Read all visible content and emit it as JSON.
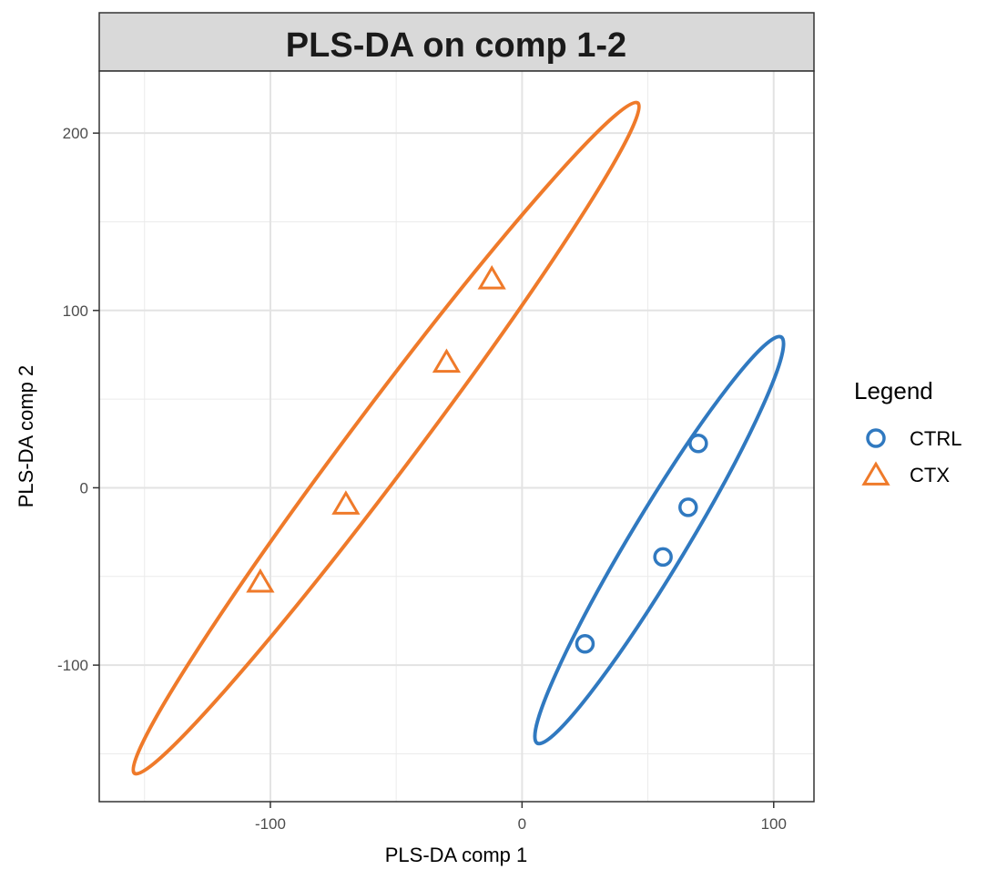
{
  "chart_data": {
    "type": "scatter",
    "title": "PLS-DA on comp 1-2",
    "xlabel": "PLS-DA comp 1",
    "ylabel": "PLS-DA comp 2",
    "xlim": [
      -168,
      116
    ],
    "ylim": [
      -177,
      235
    ],
    "x_ticks": [
      -100,
      0,
      100
    ],
    "x_tick_labels": [
      "-100",
      "0",
      "100"
    ],
    "y_ticks": [
      -100,
      0,
      100,
      200
    ],
    "y_tick_labels": [
      "-100",
      "0",
      "100",
      "200"
    ],
    "grid": true,
    "legend": {
      "title": "Legend",
      "position": "right"
    },
    "series": [
      {
        "name": "CTRL",
        "marker": "circle",
        "color": "#3079c0",
        "points": [
          [
            25,
            -88
          ],
          [
            56,
            -39
          ],
          [
            66,
            -11
          ],
          [
            70,
            25
          ]
        ],
        "ellipse": [
          [
            6,
            -144
          ],
          [
            103,
            85
          ]
        ]
      },
      {
        "name": "CTX",
        "marker": "triangle",
        "color": "#ef7a2a",
        "points": [
          [
            -104,
            -54
          ],
          [
            -70,
            -10
          ],
          [
            -30,
            70
          ],
          [
            -12,
            117
          ]
        ],
        "ellipse": [
          [
            -154,
            -161
          ],
          [
            46,
            217
          ]
        ]
      }
    ]
  }
}
